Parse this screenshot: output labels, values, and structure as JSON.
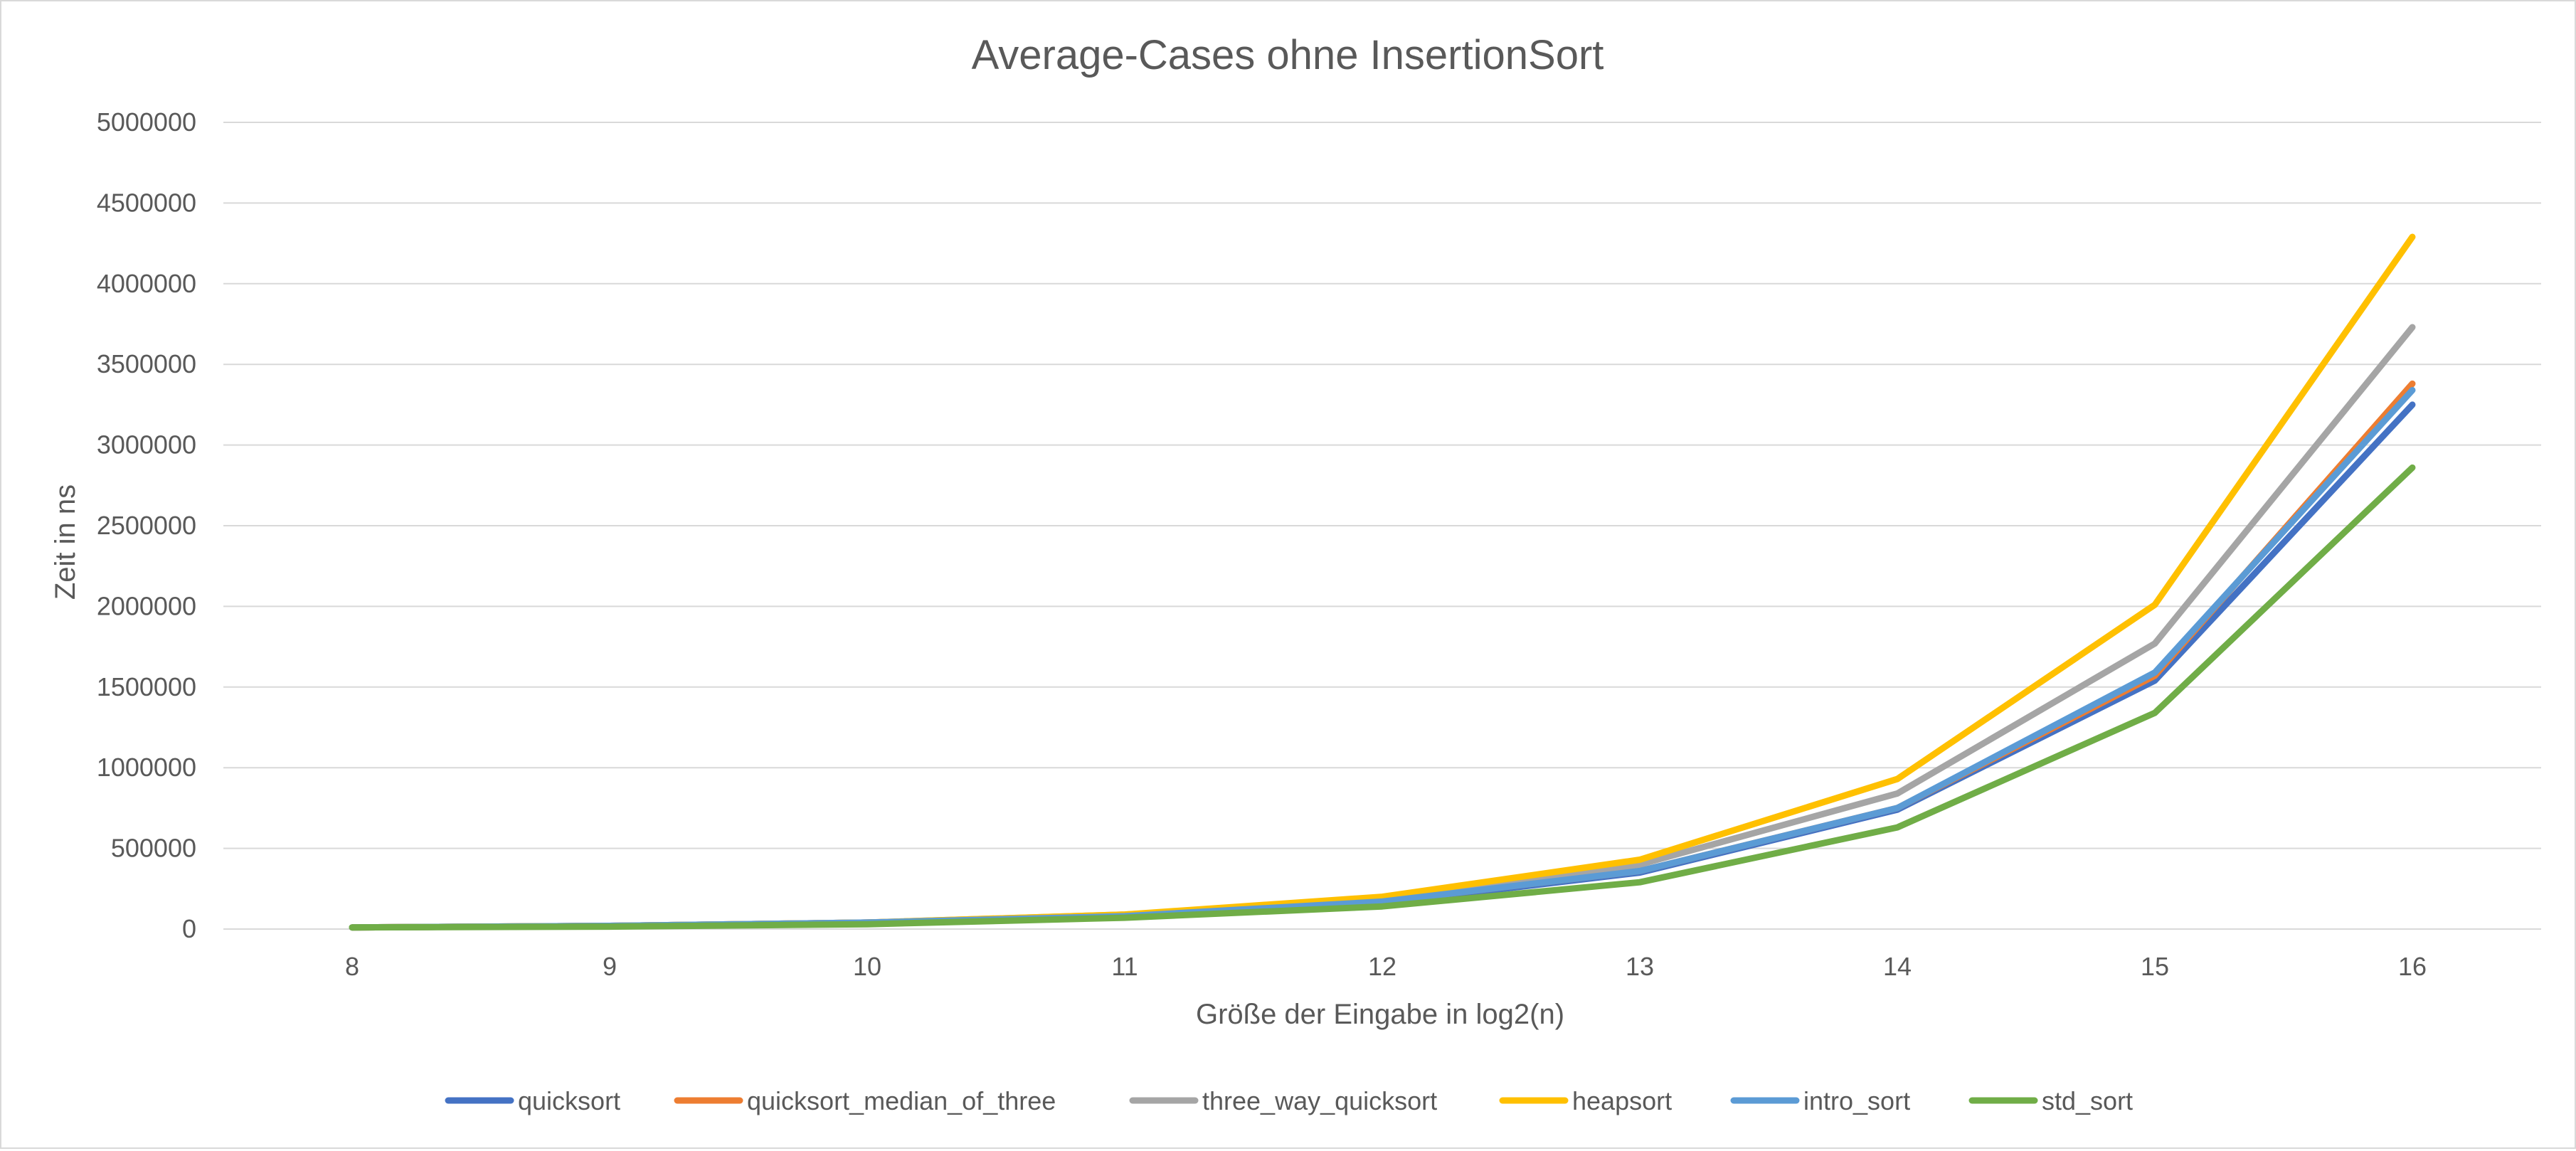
{
  "chart_data": {
    "type": "line",
    "title": "Average-Cases ohne InsertionSort",
    "xlabel": "Größe der Eingabe in log2(n)",
    "ylabel": "Zeit in ns",
    "categories": [
      "8",
      "9",
      "10",
      "11",
      "12",
      "13",
      "14",
      "15",
      "16"
    ],
    "ylim": [
      0,
      5000000
    ],
    "yticks": [
      "0",
      "500000",
      "1000000",
      "1500000",
      "2000000",
      "2500000",
      "3000000",
      "3500000",
      "4000000",
      "4500000",
      "5000000"
    ],
    "grid": true,
    "legend_position": "bottom",
    "series": [
      {
        "name": "quicksort",
        "color": "#4472C4",
        "values": [
          10000,
          20000,
          40000,
          80000,
          160000,
          350000,
          740000,
          1540000,
          3250000
        ]
      },
      {
        "name": "quicksort_median_of_three",
        "color": "#ED7D31",
        "values": [
          10000,
          20000,
          40000,
          80000,
          170000,
          360000,
          750000,
          1570000,
          3380000
        ]
      },
      {
        "name": "three_way_quicksort",
        "color": "#A5A5A5",
        "values": [
          10000,
          20000,
          40000,
          90000,
          180000,
          400000,
          840000,
          1770000,
          3730000
        ]
      },
      {
        "name": "heapsort",
        "color": "#FFC000",
        "values": [
          10000,
          20000,
          40000,
          90000,
          200000,
          430000,
          930000,
          2010000,
          4290000
        ]
      },
      {
        "name": "intro_sort",
        "color": "#5B9BD5",
        "values": [
          10000,
          20000,
          40000,
          80000,
          170000,
          360000,
          750000,
          1590000,
          3340000
        ]
      },
      {
        "name": "std_sort",
        "color": "#70AD47",
        "values": [
          10000,
          15000,
          30000,
          70000,
          140000,
          290000,
          630000,
          1340000,
          2860000
        ]
      }
    ]
  }
}
